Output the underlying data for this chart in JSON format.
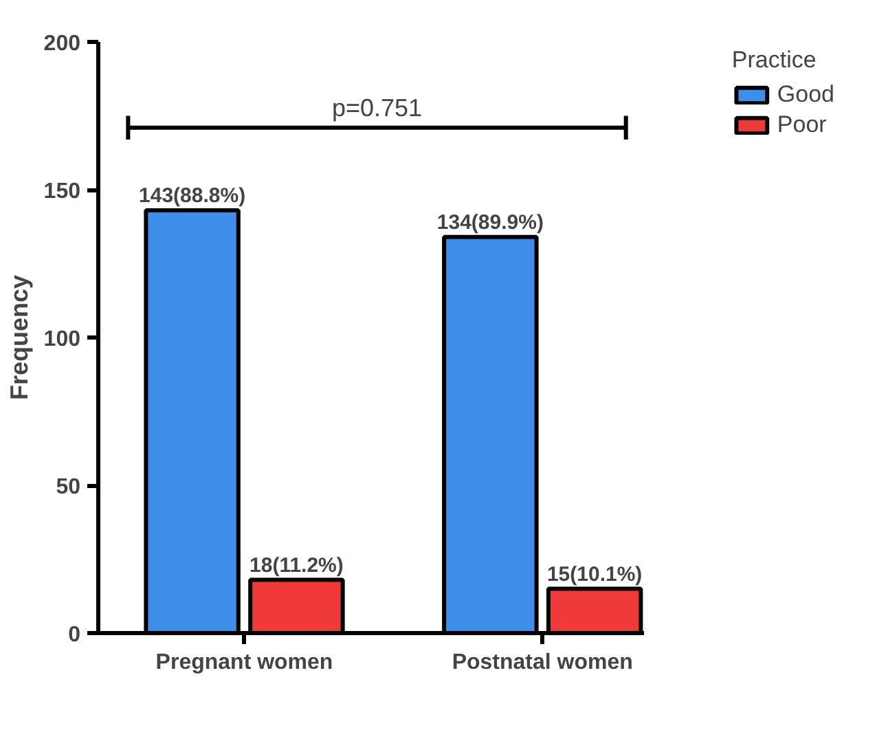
{
  "chart_data": {
    "type": "bar",
    "categories": [
      "Pregnant women",
      "Postnatal women"
    ],
    "ylabel": "Frequency",
    "legend_title": "Practice",
    "legend": "top right",
    "grid": false,
    "ylim": [
      0,
      200
    ],
    "yticks": [
      0,
      50,
      100,
      150,
      200
    ],
    "series": [
      {
        "name": "Good",
        "color": "#3d8ee8",
        "values": [
          143,
          134
        ],
        "value_labels": [
          "143(88.8%)",
          "134(89.9%)"
        ]
      },
      {
        "name": "Poor",
        "color": "#f03a3a",
        "values": [
          18,
          15
        ],
        "value_labels": [
          "18(11.2%)",
          "15(10.1%)"
        ]
      }
    ],
    "annotations": [
      "p=0.751"
    ]
  }
}
